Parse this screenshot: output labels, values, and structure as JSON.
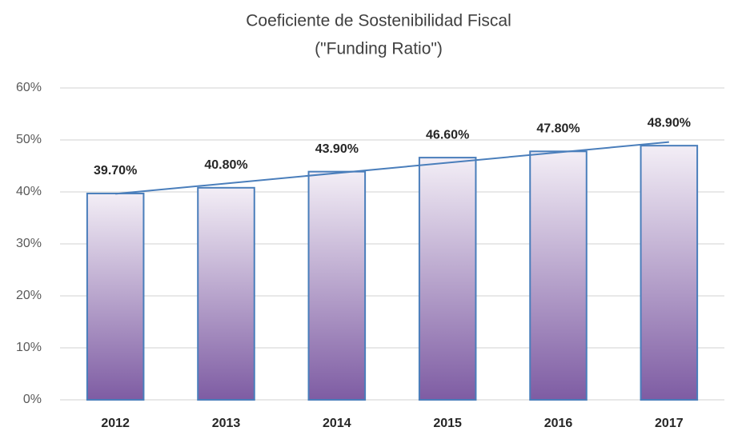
{
  "chart_data": {
    "type": "bar",
    "title": "Coeficiente  de Sostenibilidad  Fiscal",
    "subtitle": "(\"Funding Ratio\")",
    "categories": [
      "2012",
      "2013",
      "2014",
      "2015",
      "2016",
      "2017"
    ],
    "values": [
      39.7,
      40.8,
      43.9,
      46.6,
      47.8,
      48.9
    ],
    "value_labels": [
      "39.70%",
      "40.80%",
      "43.90%",
      "46.60%",
      "47.80%",
      "48.90%"
    ],
    "color": "#7e5ca3",
    "edge_color": "#4a7ebb",
    "trendline": true,
    "trendline_color": "#4a7ebb",
    "ylim": [
      0,
      60
    ],
    "yticks": [
      {
        "value": 0,
        "label": "0%"
      },
      {
        "value": 10,
        "label": "10%"
      },
      {
        "value": 20,
        "label": "20%"
      },
      {
        "value": 30,
        "label": "30%"
      },
      {
        "value": 40,
        "label": "40%"
      },
      {
        "value": 50,
        "label": "50%"
      },
      {
        "value": 60,
        "label": "60%"
      }
    ],
    "grid": true
  }
}
